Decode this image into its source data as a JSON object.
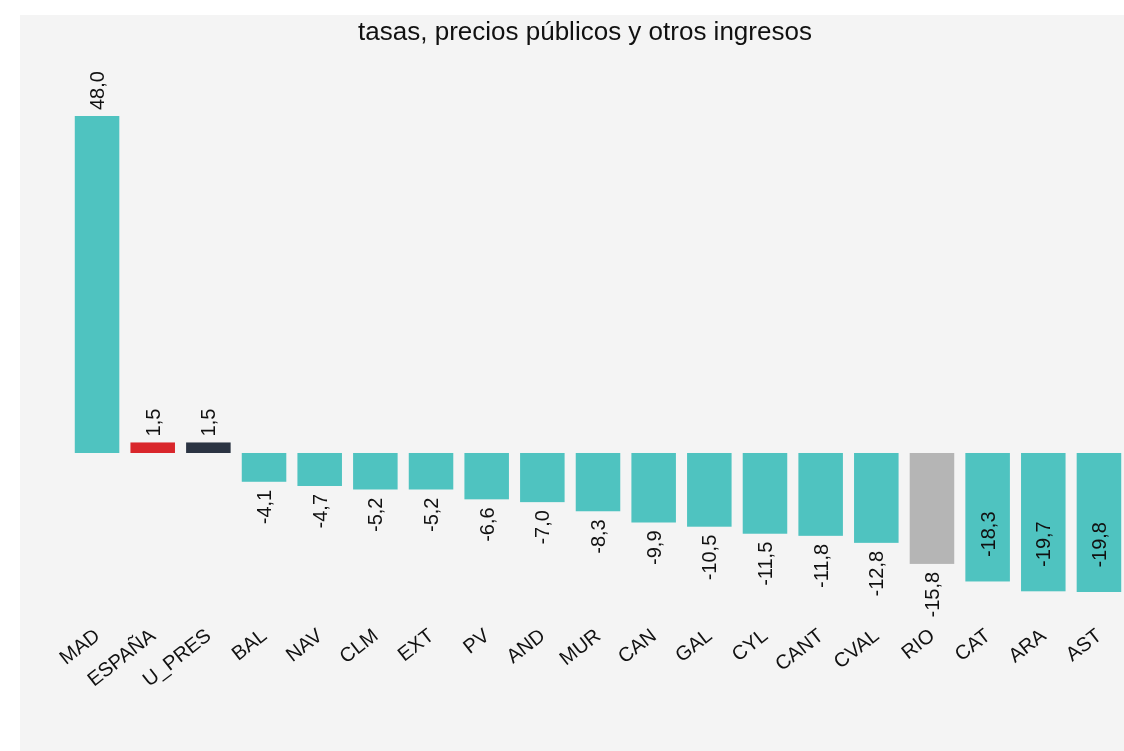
{
  "chart_data": {
    "type": "bar",
    "title": "tasas, precios públicos y otros ingresos",
    "categories": [
      "MAD",
      "ESPAÑA",
      "U_PRES",
      "BAL",
      "NAV",
      "CLM",
      "EXT",
      "PV",
      "AND",
      "MUR",
      "CAN",
      "GAL",
      "CYL",
      "CANT",
      "CVAL",
      "RIO",
      "CAT",
      "ARA",
      "AST"
    ],
    "values": [
      48.0,
      1.5,
      1.5,
      -4.1,
      -4.7,
      -5.2,
      -5.2,
      -6.6,
      -7.0,
      -8.3,
      -9.9,
      -10.5,
      -11.5,
      -11.8,
      -12.8,
      -15.8,
      -18.3,
      -19.7,
      -19.8
    ],
    "value_labels": [
      "48,0",
      "1,5",
      "1,5",
      "-4,1",
      "-4,7",
      "-5,2",
      "-5,2",
      "-6,6",
      "-7,0",
      "-8,3",
      "-9,9",
      "-10,5",
      "-11,5",
      "-11,8",
      "-12,8",
      "-15,8",
      "-18,3",
      "-19,7",
      "-19,8"
    ],
    "colors": [
      "#4fc3c0",
      "#d9262b",
      "#2b3443",
      "#4fc3c0",
      "#4fc3c0",
      "#4fc3c0",
      "#4fc3c0",
      "#4fc3c0",
      "#4fc3c0",
      "#4fc3c0",
      "#4fc3c0",
      "#4fc3c0",
      "#4fc3c0",
      "#4fc3c0",
      "#4fc3c0",
      "#b5b5b5",
      "#4fc3c0",
      "#4fc3c0",
      "#4fc3c0"
    ]
  }
}
